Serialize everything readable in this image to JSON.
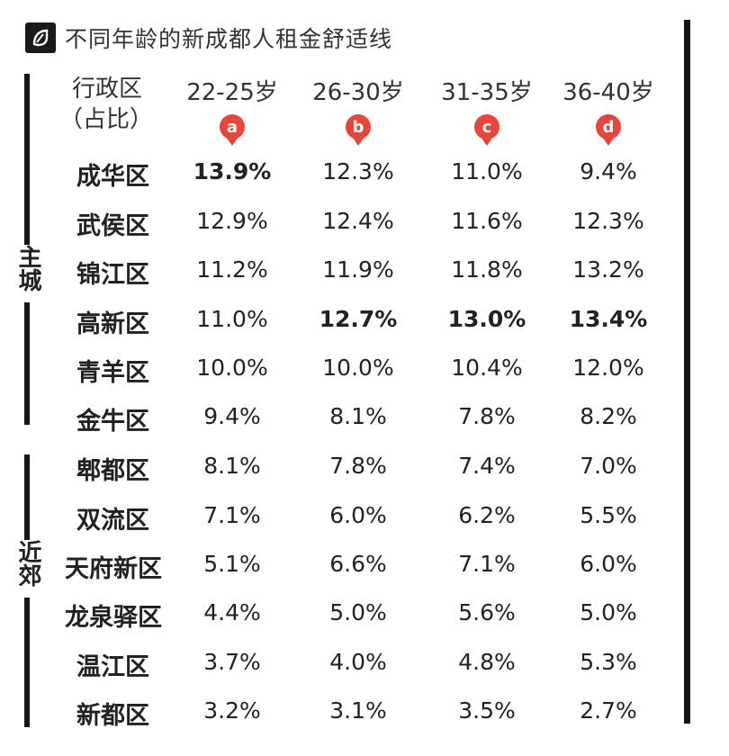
{
  "title": "不同年龄的新成都人租金舒适线",
  "header": {
    "district_line1": "行政区",
    "district_line2": "（占比）"
  },
  "groups": {
    "main": "主城",
    "suburb": "近郊"
  },
  "chart_data": {
    "type": "table",
    "title": "不同年龄的新成都人租金舒适线",
    "columns": [
      {
        "label": "22-25岁",
        "marker": "a"
      },
      {
        "label": "26-30岁",
        "marker": "b"
      },
      {
        "label": "31-35岁",
        "marker": "c"
      },
      {
        "label": "36-40岁",
        "marker": "d"
      }
    ],
    "rows": [
      {
        "district": "成华区",
        "values": [
          "13.9%",
          "12.3%",
          "11.0%",
          "9.4%"
        ],
        "bold": [
          true,
          false,
          false,
          false
        ]
      },
      {
        "district": "武侯区",
        "values": [
          "12.9%",
          "12.4%",
          "11.6%",
          "12.3%"
        ],
        "bold": [
          false,
          false,
          false,
          false
        ]
      },
      {
        "district": "锦江区",
        "values": [
          "11.2%",
          "11.9%",
          "11.8%",
          "13.2%"
        ],
        "bold": [
          false,
          false,
          false,
          false
        ]
      },
      {
        "district": "高新区",
        "values": [
          "11.0%",
          "12.7%",
          "13.0%",
          "13.4%"
        ],
        "bold": [
          false,
          true,
          true,
          true
        ]
      },
      {
        "district": "青羊区",
        "values": [
          "10.0%",
          "10.0%",
          "10.4%",
          "12.0%"
        ],
        "bold": [
          false,
          false,
          false,
          false
        ]
      },
      {
        "district": "金牛区",
        "values": [
          "9.4%",
          "8.1%",
          "7.8%",
          "8.2%"
        ],
        "bold": [
          false,
          false,
          false,
          false
        ]
      },
      {
        "district": "郫都区",
        "values": [
          "8.1%",
          "7.8%",
          "7.4%",
          "7.0%"
        ],
        "bold": [
          false,
          false,
          false,
          false
        ]
      },
      {
        "district": "双流区",
        "values": [
          "7.1%",
          "6.0%",
          "6.2%",
          "5.5%"
        ],
        "bold": [
          false,
          false,
          false,
          false
        ]
      },
      {
        "district": "天府新区",
        "values": [
          "5.1%",
          "6.6%",
          "7.1%",
          "6.0%"
        ],
        "bold": [
          false,
          false,
          false,
          false
        ]
      },
      {
        "district": "龙泉驿区",
        "values": [
          "4.4%",
          "5.0%",
          "5.6%",
          "5.0%"
        ],
        "bold": [
          false,
          false,
          false,
          false
        ]
      },
      {
        "district": "温江区",
        "values": [
          "3.7%",
          "4.0%",
          "4.8%",
          "5.3%"
        ],
        "bold": [
          false,
          false,
          false,
          false
        ]
      },
      {
        "district": "新都区",
        "values": [
          "3.2%",
          "3.1%",
          "3.5%",
          "2.7%"
        ],
        "bold": [
          false,
          false,
          false,
          false
        ]
      }
    ],
    "marker_color": "#e8453c"
  }
}
